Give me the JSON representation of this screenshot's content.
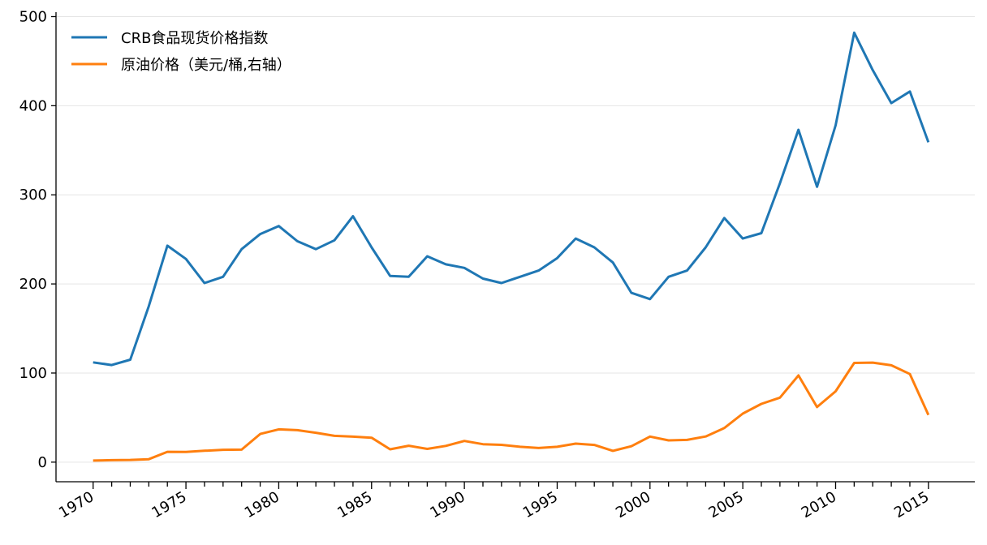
{
  "chart_data": {
    "type": "line",
    "title": "",
    "xlabel": "",
    "ylabel": "",
    "xlim": [
      1968,
      2017.5
    ],
    "ylim": [
      -22,
      505
    ],
    "grid": "horizontal",
    "legend_position": "top-left",
    "x_ticks": [
      1970,
      1975,
      1980,
      1985,
      1990,
      1995,
      2000,
      2005,
      2010,
      2015
    ],
    "y_ticks": [
      0,
      100,
      200,
      300,
      400,
      500
    ],
    "x": [
      1970,
      1971,
      1972,
      1973,
      1974,
      1975,
      1976,
      1977,
      1978,
      1979,
      1980,
      1981,
      1982,
      1983,
      1984,
      1985,
      1986,
      1987,
      1988,
      1989,
      1990,
      1991,
      1992,
      1993,
      1994,
      1995,
      1996,
      1997,
      1998,
      1999,
      2000,
      2001,
      2002,
      2003,
      2004,
      2005,
      2006,
      2007,
      2008,
      2009,
      2010,
      2011,
      2012,
      2013,
      2014,
      2015
    ],
    "series": [
      {
        "name": "CRB食品现货价格指数",
        "color": "#1f77b4",
        "values": [
          112,
          109,
          115,
          175,
          243,
          228,
          201,
          208,
          239,
          256,
          265,
          248,
          239,
          249,
          276,
          241,
          209,
          208,
          231,
          222,
          218,
          206,
          201,
          208,
          215,
          229,
          251,
          241,
          224,
          190,
          183,
          208,
          215,
          241,
          274,
          251,
          257,
          313,
          373,
          309,
          378,
          482,
          440,
          403,
          416,
          359
        ]
      },
      {
        "name": "原油价格（美元/桶,右轴）",
        "color": "#ff7f0e",
        "values": [
          1.8,
          2.2,
          2.5,
          3.3,
          11.6,
          11.5,
          12.8,
          13.9,
          14.0,
          31.6,
          36.8,
          35.9,
          33.0,
          29.5,
          28.6,
          27.4,
          14.4,
          18.4,
          14.9,
          18.2,
          23.8,
          20.1,
          19.4,
          17.2,
          15.9,
          17.2,
          20.8,
          19.3,
          12.7,
          17.9,
          28.7,
          24.4,
          25.0,
          28.8,
          38.3,
          54.5,
          65.4,
          72.4,
          97.3,
          61.8,
          79.5,
          111.3,
          111.7,
          108.7,
          98.9,
          53.0
        ]
      }
    ]
  }
}
